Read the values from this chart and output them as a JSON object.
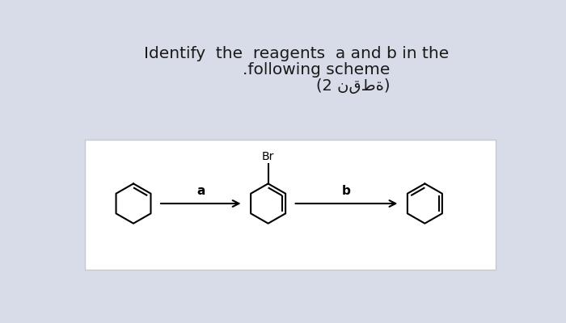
{
  "title_line1": "Identify  the  reagents  a and b in the",
  "title_line2": ".following scheme",
  "title_line3": "(2 نقطة)",
  "bg_color_top": "#d8dce8",
  "bg_color_box": "#ffffff",
  "box_border": "#c8c8c8",
  "text_color": "#1a1a1a",
  "arrow_label_a": "a",
  "arrow_label_b": "b",
  "br_label": "Br"
}
